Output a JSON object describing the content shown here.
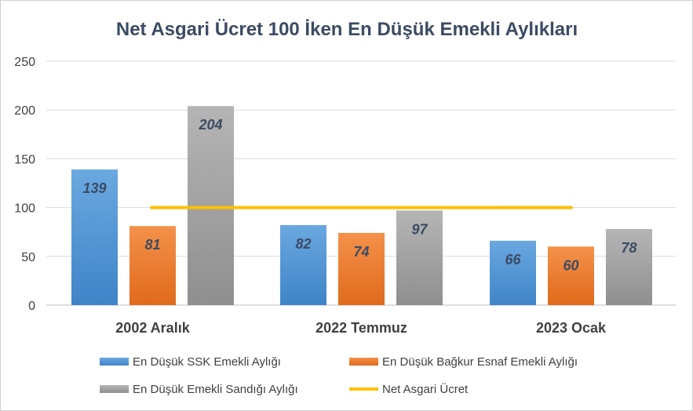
{
  "chart_data": {
    "type": "bar",
    "title": "Net Asgari Ücret 100 İken En Düşük Emekli Aylıkları",
    "categories": [
      "2002 Aralık",
      "2022 Temmuz",
      "2023 Ocak"
    ],
    "ylim": [
      0,
      250
    ],
    "yticks": [
      "0",
      "50",
      "100",
      "150",
      "200",
      "250"
    ],
    "grid": true,
    "legend_position": "bottom",
    "series": [
      {
        "name": "En Düşük SSK Emekli Aylığı",
        "values": [
          139,
          82,
          66
        ],
        "color": "#5b9bd5"
      },
      {
        "name": "En Düşük Bağkur Esnaf Emekli Aylığı",
        "values": [
          81,
          74,
          60
        ],
        "color": "#ed7d31"
      },
      {
        "name": "En Düşük Emekli Sandığı  Aylığı",
        "values": [
          204,
          97,
          78
        ],
        "color": "#a5a5a5"
      }
    ],
    "line": {
      "name": "Net Asgari Ücret",
      "value": 100,
      "color": "#ffc000"
    }
  }
}
